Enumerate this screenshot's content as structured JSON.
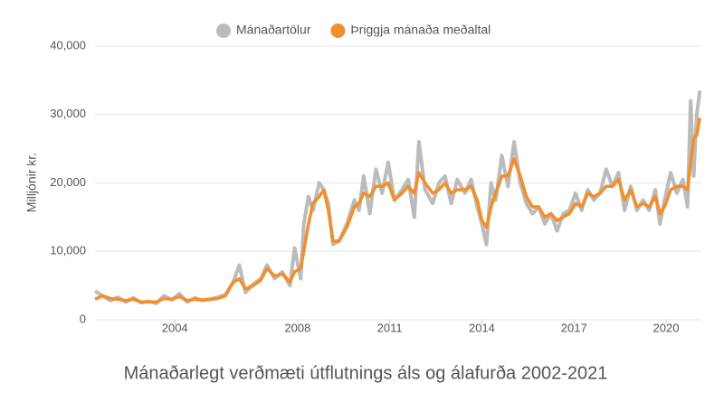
{
  "chart_data": {
    "type": "line",
    "title": "Mánaðarlegt verðmæti útflutnings áls og álafurða 2002-2021",
    "y_label": "Milljónir kr.",
    "x": [
      2001.4,
      2001.65,
      2001.9,
      2002.15,
      2002.4,
      2002.65,
      2002.9,
      2003.15,
      2003.4,
      2003.65,
      2003.9,
      2004.15,
      2004.4,
      2004.65,
      2004.9,
      2005.15,
      2005.4,
      2005.65,
      2005.9,
      2006.1,
      2006.3,
      2006.55,
      2006.8,
      2007.0,
      2007.25,
      2007.5,
      2007.75,
      2007.9,
      2008.1,
      2008.2,
      2008.35,
      2008.5,
      2008.7,
      2008.85,
      2009.0,
      2009.15,
      2009.35,
      2009.6,
      2009.85,
      2010.0,
      2010.15,
      2010.35,
      2010.55,
      2010.75,
      2010.95,
      2011.15,
      2011.4,
      2011.6,
      2011.8,
      2011.95,
      2012.15,
      2012.4,
      2012.6,
      2012.8,
      2013.0,
      2013.2,
      2013.45,
      2013.65,
      2013.85,
      2014.0,
      2014.15,
      2014.3,
      2014.45,
      2014.65,
      2014.85,
      2015.05,
      2015.25,
      2015.45,
      2015.65,
      2015.85,
      2016.05,
      2016.25,
      2016.45,
      2016.65,
      2016.85,
      2017.05,
      2017.25,
      2017.45,
      2017.65,
      2017.85,
      2018.05,
      2018.25,
      2018.45,
      2018.65,
      2018.85,
      2019.05,
      2019.25,
      2019.45,
      2019.65,
      2019.8,
      2019.95,
      2020.15,
      2020.35,
      2020.55,
      2020.7,
      2020.8,
      2020.9,
      2021.0,
      2021.1
    ],
    "series": [
      {
        "name": "Mánaðartölur",
        "color": "#bbbbbb",
        "width": 4,
        "values": [
          4200,
          3500,
          2800,
          3300,
          2600,
          3200,
          2500,
          2700,
          2400,
          3500,
          2900,
          3800,
          2600,
          3200,
          2800,
          3000,
          3300,
          3700,
          5500,
          8000,
          4000,
          5200,
          6000,
          8000,
          6000,
          7000,
          5000,
          10500,
          6000,
          14000,
          18000,
          16000,
          20000,
          19000,
          17000,
          11000,
          11500,
          14000,
          17500,
          16000,
          21000,
          15500,
          22000,
          18500,
          23000,
          17500,
          19000,
          20500,
          15000,
          26000,
          19000,
          17000,
          20000,
          21000,
          17000,
          20500,
          18500,
          20500,
          16500,
          14000,
          11000,
          20000,
          17500,
          24000,
          19500,
          26000,
          20000,
          17000,
          15500,
          16500,
          14000,
          15500,
          13000,
          15500,
          16000,
          18500,
          16000,
          19000,
          17500,
          18500,
          22000,
          19500,
          21500,
          16000,
          19500,
          16000,
          17500,
          16000,
          19000,
          14000,
          17500,
          21500,
          18500,
          20500,
          16500,
          32000,
          21000,
          30000,
          33500
        ]
      },
      {
        "name": "Þriggja mánaða meðaltal",
        "color": "#f28e2b",
        "width": 3.5,
        "values": [
          3000,
          3500,
          3100,
          3000,
          2800,
          3000,
          2600,
          2600,
          2600,
          3100,
          3000,
          3400,
          2800,
          3000,
          2900,
          3000,
          3100,
          3500,
          5500,
          6000,
          4500,
          5000,
          5800,
          7500,
          6400,
          6700,
          5500,
          7000,
          7500,
          10000,
          14000,
          17000,
          18000,
          19000,
          16000,
          11500,
          11500,
          13500,
          16500,
          17000,
          18500,
          18000,
          19500,
          19500,
          20000,
          17500,
          18500,
          19500,
          18500,
          21500,
          20000,
          18500,
          19000,
          20000,
          18500,
          19000,
          19000,
          19500,
          17500,
          14500,
          13500,
          16500,
          18500,
          21000,
          21000,
          23500,
          21000,
          18000,
          16500,
          16500,
          15000,
          15500,
          14500,
          15000,
          15500,
          17000,
          16500,
          18500,
          18000,
          18500,
          19500,
          19500,
          20500,
          17500,
          19000,
          16500,
          17000,
          16500,
          18000,
          15500,
          16500,
          19000,
          19500,
          19500,
          19000,
          23000,
          26500,
          27000,
          29500
        ]
      }
    ],
    "xlim": [
      2001.4,
      2021.15
    ],
    "xticks": [
      2004,
      2008,
      2011,
      2014,
      2017,
      2020
    ],
    "ylim": [
      0,
      40000
    ],
    "yticks": [
      0,
      {
        "value": 10000,
        "label": "10,000"
      },
      {
        "value": 20000,
        "label": "20,000"
      },
      {
        "value": 30000,
        "label": "30,000"
      },
      {
        "value": 40000,
        "label": "40,000"
      }
    ],
    "grid": true,
    "legend": "top"
  }
}
